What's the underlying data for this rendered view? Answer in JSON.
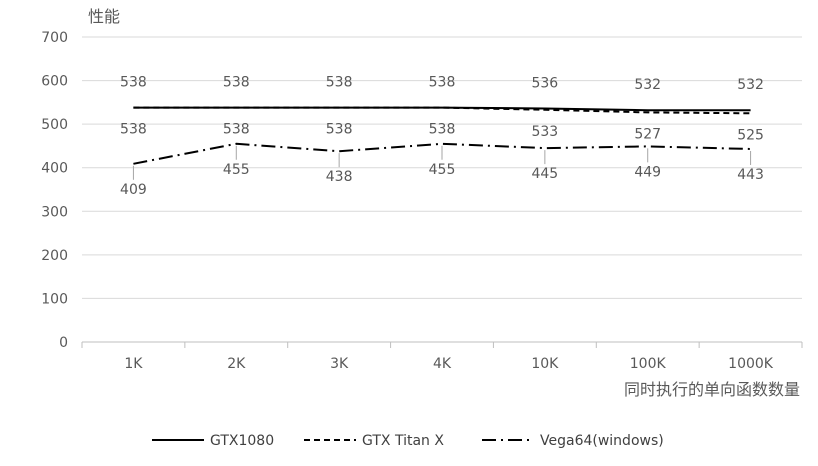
{
  "chart_data": {
    "type": "line",
    "ylabel": "性能",
    "xlabel": "同时执行的单向函数数量",
    "categories": [
      "1K",
      "2K",
      "3K",
      "4K",
      "10K",
      "100K",
      "1000K"
    ],
    "ylim": [
      0,
      700
    ],
    "yticks": [
      0,
      100,
      200,
      300,
      400,
      500,
      600,
      700
    ],
    "grid": true,
    "legend_position": "bottom",
    "series": [
      {
        "name": "GTX1080",
        "values": [
          538,
          538,
          538,
          538,
          536,
          532,
          532
        ],
        "color": "#000000",
        "dash": "solid"
      },
      {
        "name": "GTX Titan X",
        "values": [
          538,
          538,
          538,
          538,
          533,
          527,
          525
        ],
        "color": "#000000",
        "dash": "dashed"
      },
      {
        "name": "Vega64(windows)",
        "values": [
          409,
          455,
          438,
          455,
          445,
          449,
          443
        ],
        "color": "#000000",
        "dash": "dashdot"
      }
    ]
  }
}
